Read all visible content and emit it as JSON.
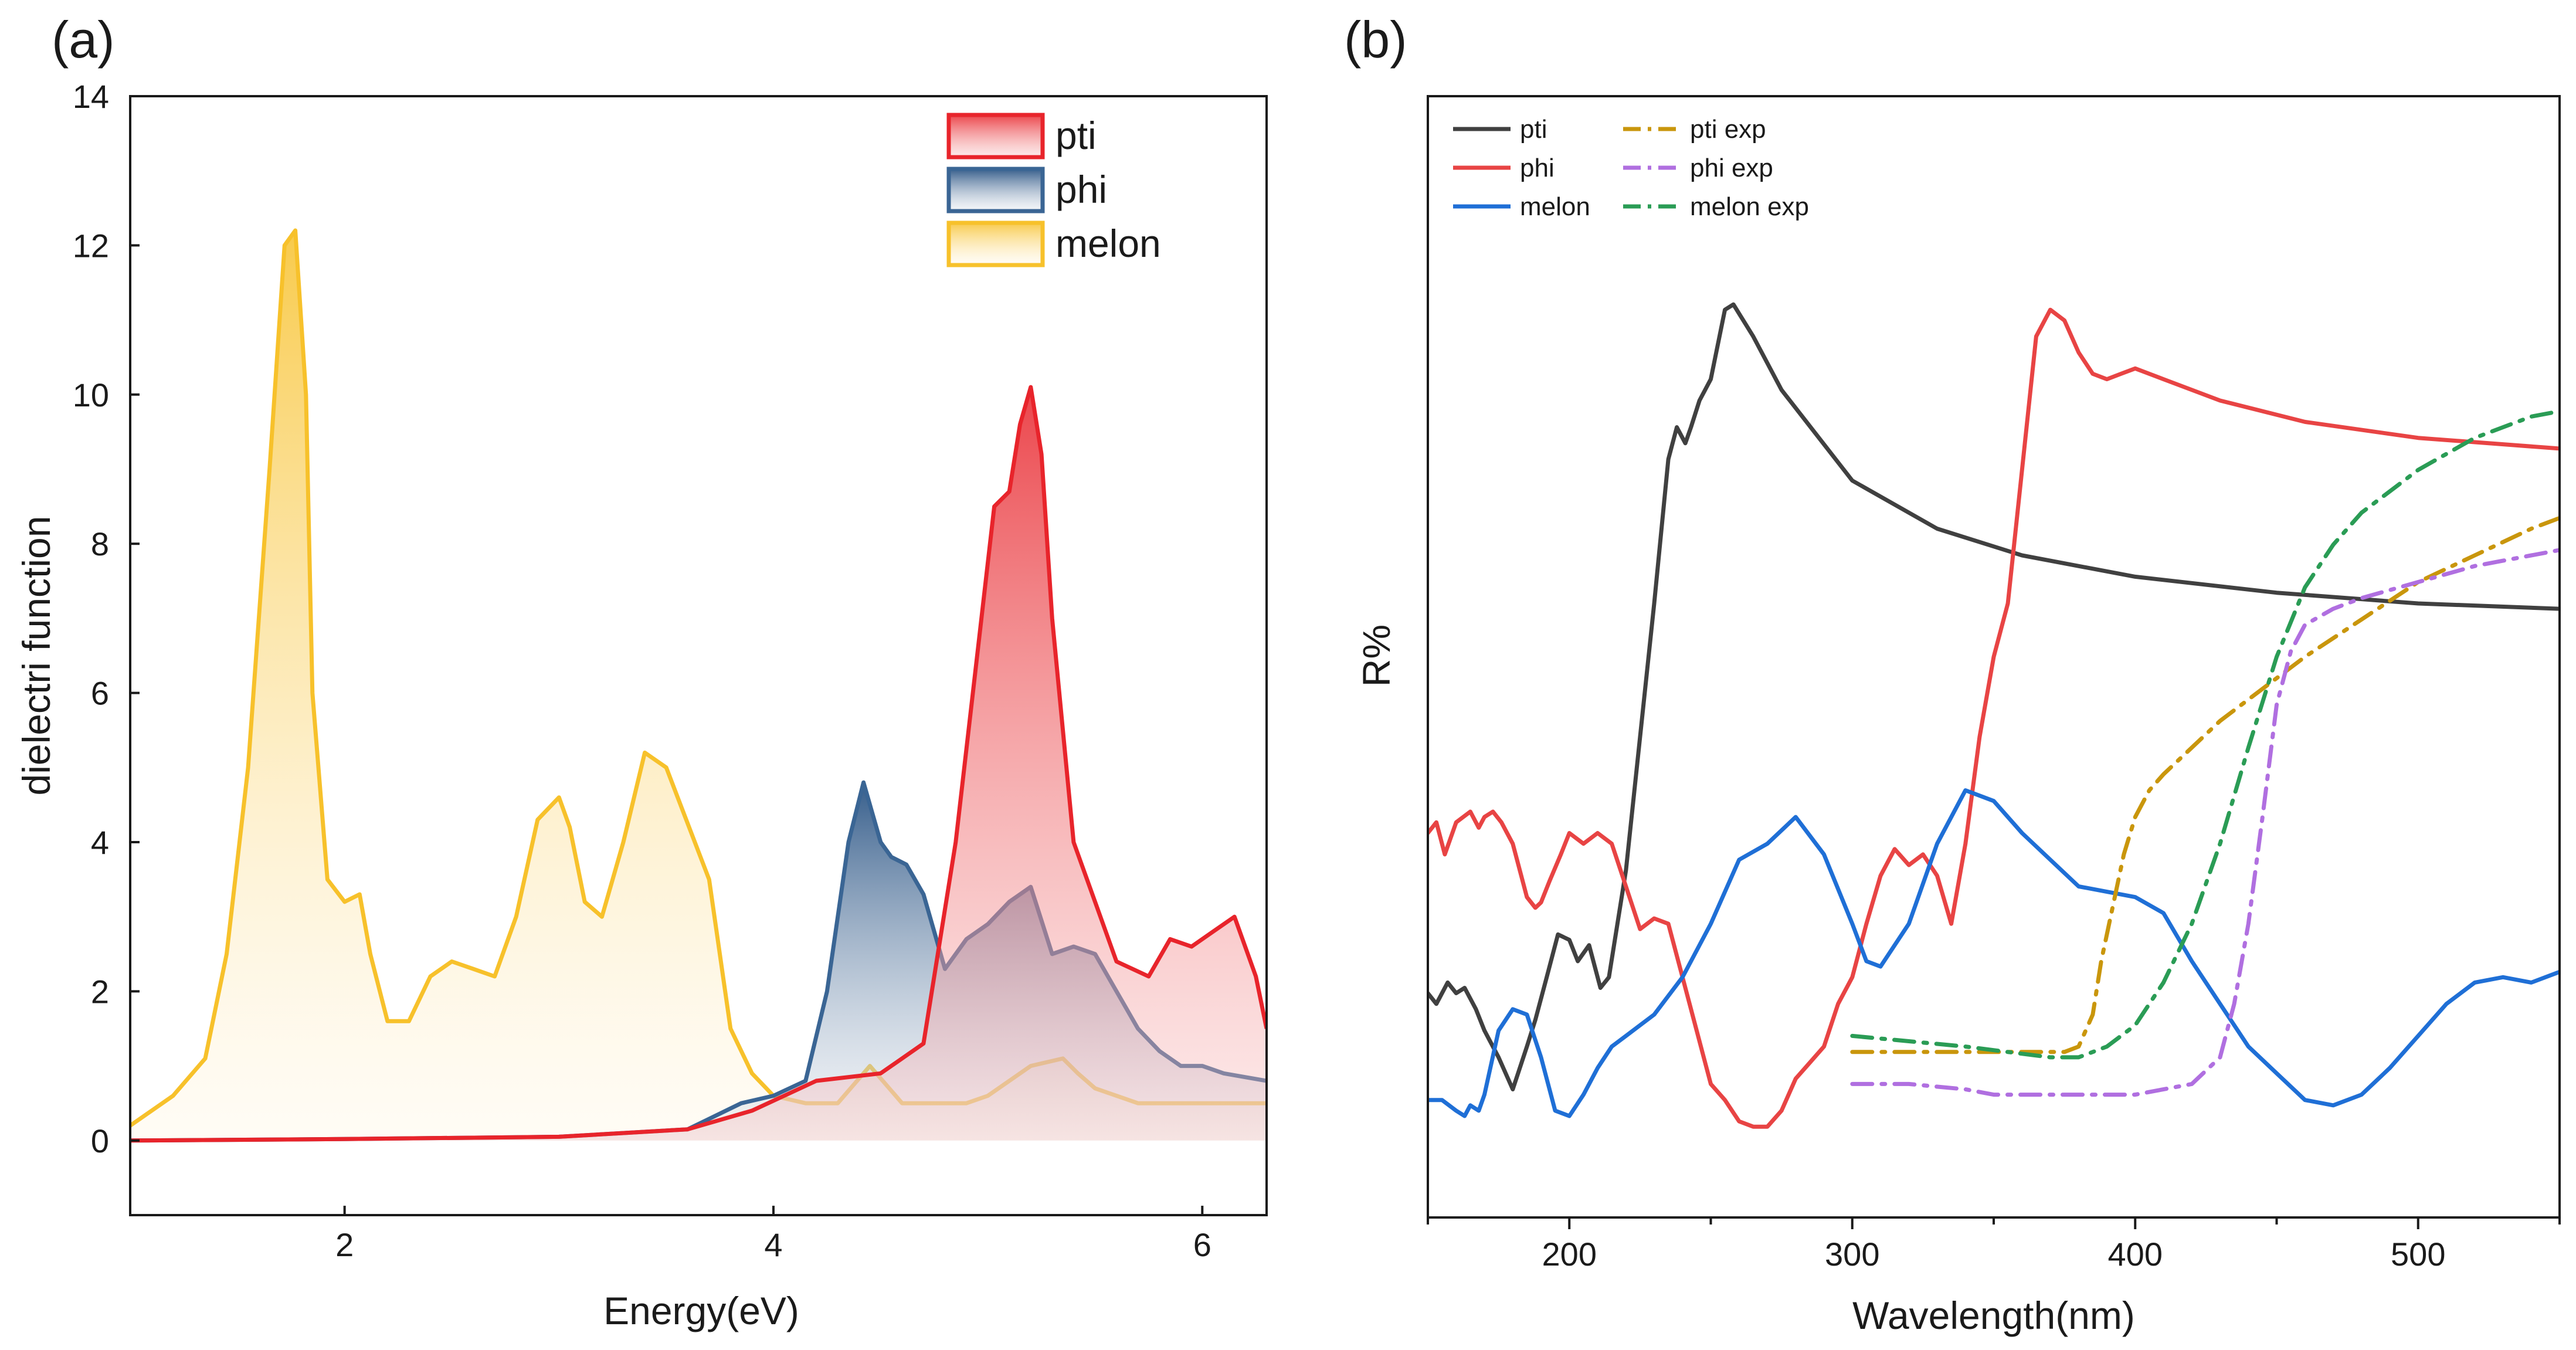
{
  "chart_data": [
    {
      "panel": "(a)",
      "type": "area",
      "xlabel": "Energy(eV)",
      "ylabel": "dielectri function",
      "xlim": [
        1.0,
        6.3
      ],
      "ylim": [
        -1,
        14
      ],
      "xticks": [
        2,
        4,
        6
      ],
      "yticks": [
        0,
        2,
        4,
        6,
        8,
        10,
        12,
        14
      ],
      "legend": {
        "position": "top-right",
        "entries": [
          "pti",
          "phi",
          "melon"
        ]
      },
      "series": [
        {
          "name": "pti",
          "color": "#e8242b",
          "x": [
            1.0,
            2.0,
            3.0,
            3.6,
            3.9,
            4.2,
            4.5,
            4.7,
            4.85,
            4.95,
            5.03,
            5.1,
            5.15,
            5.2,
            5.25,
            5.3,
            5.4,
            5.5,
            5.6,
            5.75,
            5.85,
            5.95,
            6.05,
            6.15,
            6.25,
            6.3
          ],
          "y": [
            0.0,
            0.02,
            0.05,
            0.15,
            0.4,
            0.8,
            0.9,
            1.3,
            4.0,
            6.5,
            8.5,
            8.7,
            9.6,
            10.1,
            9.2,
            7.0,
            4.0,
            3.2,
            2.4,
            2.2,
            2.7,
            2.6,
            2.8,
            3.0,
            2.2,
            1.5
          ]
        },
        {
          "name": "phi",
          "color": "#3a6594",
          "x": [
            1.0,
            2.0,
            3.0,
            3.6,
            3.85,
            4.0,
            4.15,
            4.25,
            4.35,
            4.42,
            4.5,
            4.55,
            4.62,
            4.7,
            4.8,
            4.9,
            5.0,
            5.1,
            5.2,
            5.3,
            5.4,
            5.5,
            5.6,
            5.7,
            5.8,
            5.9,
            6.0,
            6.1,
            6.2,
            6.3
          ],
          "y": [
            0.0,
            0.02,
            0.05,
            0.15,
            0.5,
            0.6,
            0.8,
            2.0,
            4.0,
            4.8,
            4.0,
            3.8,
            3.7,
            3.3,
            2.3,
            2.7,
            2.9,
            3.2,
            3.4,
            2.5,
            2.6,
            2.5,
            2.0,
            1.5,
            1.2,
            1.0,
            1.0,
            0.9,
            0.85,
            0.8
          ]
        },
        {
          "name": "melon",
          "color": "#f7c12b",
          "x": [
            1.0,
            1.2,
            1.35,
            1.45,
            1.55,
            1.65,
            1.72,
            1.77,
            1.82,
            1.85,
            1.92,
            2.0,
            2.07,
            2.12,
            2.2,
            2.3,
            2.4,
            2.5,
            2.6,
            2.7,
            2.8,
            2.9,
            3.0,
            3.05,
            3.12,
            3.2,
            3.3,
            3.4,
            3.5,
            3.58,
            3.7,
            3.8,
            3.9,
            4.0,
            4.15,
            4.3,
            4.45,
            4.6,
            4.72,
            4.8,
            4.9,
            5.0,
            5.2,
            5.35,
            5.42,
            5.5,
            5.7,
            5.9,
            6.1,
            6.3
          ],
          "y": [
            0.2,
            0.6,
            1.1,
            2.5,
            5.0,
            9.0,
            12.0,
            12.2,
            10.0,
            6.0,
            3.5,
            3.2,
            3.3,
            2.5,
            1.6,
            1.6,
            2.2,
            2.4,
            2.3,
            2.2,
            3.0,
            4.3,
            4.6,
            4.2,
            3.2,
            3.0,
            4.0,
            5.2,
            5.0,
            4.4,
            3.5,
            1.5,
            0.9,
            0.6,
            0.5,
            0.5,
            1.0,
            0.5,
            0.5,
            0.5,
            0.5,
            0.6,
            1.0,
            1.1,
            0.9,
            0.7,
            0.5,
            0.5,
            0.5,
            0.5
          ]
        }
      ]
    },
    {
      "panel": "(b)",
      "type": "line",
      "xlabel": "Wavelength(nm)",
      "ylabel": "R%",
      "xlim": [
        150,
        550
      ],
      "xticks": [
        200,
        300,
        400,
        500
      ],
      "legend": {
        "position": "top-left",
        "entries": [
          "pti",
          "phi",
          "melon",
          "pti exp",
          "phi exp",
          "melon exp"
        ]
      },
      "series": [
        {
          "name": "pti",
          "color": "#404040",
          "dash": "solid",
          "x": [
            150,
            153,
            157,
            160,
            163,
            167,
            170,
            175,
            180,
            185,
            188,
            192,
            196,
            200,
            203,
            207,
            211,
            214,
            217,
            220,
            225,
            230,
            235,
            238,
            241,
            243,
            246,
            250,
            255,
            258,
            265,
            275,
            300,
            330,
            360,
            400,
            450,
            500,
            550
          ],
          "y": [
            0.82,
            0.8,
            0.84,
            0.82,
            0.83,
            0.79,
            0.75,
            0.7,
            0.64,
            0.72,
            0.77,
            0.85,
            0.93,
            0.92,
            0.88,
            0.91,
            0.83,
            0.85,
            0.95,
            1.05,
            1.3,
            1.55,
            1.82,
            1.88,
            1.85,
            1.88,
            1.93,
            1.97,
            2.1,
            2.11,
            2.05,
            1.95,
            1.78,
            1.69,
            1.64,
            1.6,
            1.57,
            1.55,
            1.54
          ]
        },
        {
          "name": "phi",
          "color": "#e84444",
          "dash": "solid",
          "x": [
            150,
            153,
            156,
            160,
            165,
            168,
            170,
            173,
            176,
            180,
            185,
            188,
            190,
            193,
            197,
            200,
            205,
            210,
            215,
            220,
            225,
            230,
            235,
            240,
            245,
            250,
            255,
            260,
            265,
            270,
            275,
            280,
            285,
            290,
            295,
            300,
            305,
            310,
            315,
            320,
            325,
            330,
            335,
            340,
            345,
            350,
            355,
            360,
            365,
            370,
            375,
            380,
            385,
            390,
            395,
            400,
            410,
            430,
            460,
            500,
            550
          ],
          "y": [
            1.12,
            1.14,
            1.08,
            1.14,
            1.16,
            1.13,
            1.15,
            1.16,
            1.14,
            1.1,
            1.0,
            0.98,
            0.99,
            1.03,
            1.08,
            1.12,
            1.1,
            1.12,
            1.1,
            1.02,
            0.94,
            0.96,
            0.95,
            0.85,
            0.75,
            0.65,
            0.62,
            0.58,
            0.57,
            0.57,
            0.6,
            0.66,
            0.69,
            0.72,
            0.8,
            0.85,
            0.95,
            1.04,
            1.09,
            1.06,
            1.08,
            1.04,
            0.95,
            1.1,
            1.3,
            1.45,
            1.55,
            1.8,
            2.05,
            2.1,
            2.08,
            2.02,
            1.98,
            1.97,
            1.98,
            1.99,
            1.97,
            1.93,
            1.89,
            1.86,
            1.84
          ]
        },
        {
          "name": "melon",
          "color": "#1f6fd6",
          "dash": "solid",
          "x": [
            150,
            155,
            160,
            163,
            165,
            168,
            170,
            175,
            180,
            185,
            190,
            195,
            200,
            205,
            210,
            215,
            220,
            230,
            240,
            250,
            260,
            270,
            280,
            290,
            300,
            305,
            310,
            320,
            330,
            340,
            350,
            360,
            370,
            380,
            390,
            400,
            410,
            420,
            430,
            440,
            450,
            460,
            470,
            480,
            490,
            500,
            510,
            520,
            530,
            540,
            550
          ],
          "y": [
            0.62,
            0.62,
            0.6,
            0.59,
            0.61,
            0.6,
            0.63,
            0.75,
            0.79,
            0.78,
            0.7,
            0.6,
            0.59,
            0.63,
            0.68,
            0.72,
            0.74,
            0.78,
            0.85,
            0.95,
            1.07,
            1.1,
            1.15,
            1.08,
            0.95,
            0.88,
            0.87,
            0.95,
            1.1,
            1.2,
            1.18,
            1.12,
            1.07,
            1.02,
            1.01,
            1.0,
            0.97,
            0.88,
            0.8,
            0.72,
            0.67,
            0.62,
            0.61,
            0.63,
            0.68,
            0.74,
            0.8,
            0.84,
            0.85,
            0.84,
            0.86
          ]
        },
        {
          "name": "pti exp",
          "color": "#c9960c",
          "dash": "dashdot",
          "x": [
            300,
            320,
            340,
            360,
            375,
            380,
            385,
            388,
            392,
            396,
            400,
            405,
            410,
            420,
            430,
            440,
            450,
            460,
            480,
            500,
            520,
            540,
            550
          ],
          "y": [
            0.71,
            0.71,
            0.71,
            0.71,
            0.71,
            0.72,
            0.78,
            0.88,
            0.98,
            1.08,
            1.15,
            1.2,
            1.23,
            1.28,
            1.33,
            1.37,
            1.41,
            1.45,
            1.52,
            1.59,
            1.64,
            1.69,
            1.71
          ]
        },
        {
          "name": "phi exp",
          "color": "#b06fe0",
          "dash": "dashdot",
          "x": [
            300,
            320,
            340,
            350,
            360,
            380,
            400,
            420,
            430,
            435,
            440,
            445,
            450,
            455,
            460,
            470,
            480,
            500,
            520,
            540,
            550
          ],
          "y": [
            0.65,
            0.65,
            0.64,
            0.63,
            0.63,
            0.63,
            0.63,
            0.65,
            0.7,
            0.8,
            0.95,
            1.15,
            1.36,
            1.46,
            1.51,
            1.54,
            1.56,
            1.59,
            1.62,
            1.64,
            1.65
          ]
        },
        {
          "name": "melon exp",
          "color": "#2a9c55",
          "dash": "dashdot",
          "x": [
            300,
            320,
            340,
            355,
            370,
            380,
            390,
            400,
            410,
            420,
            430,
            440,
            450,
            460,
            470,
            480,
            500,
            520,
            540,
            550
          ],
          "y": [
            0.74,
            0.73,
            0.72,
            0.71,
            0.7,
            0.7,
            0.72,
            0.76,
            0.84,
            0.95,
            1.1,
            1.28,
            1.45,
            1.58,
            1.66,
            1.72,
            1.8,
            1.86,
            1.9,
            1.91
          ]
        }
      ]
    }
  ]
}
